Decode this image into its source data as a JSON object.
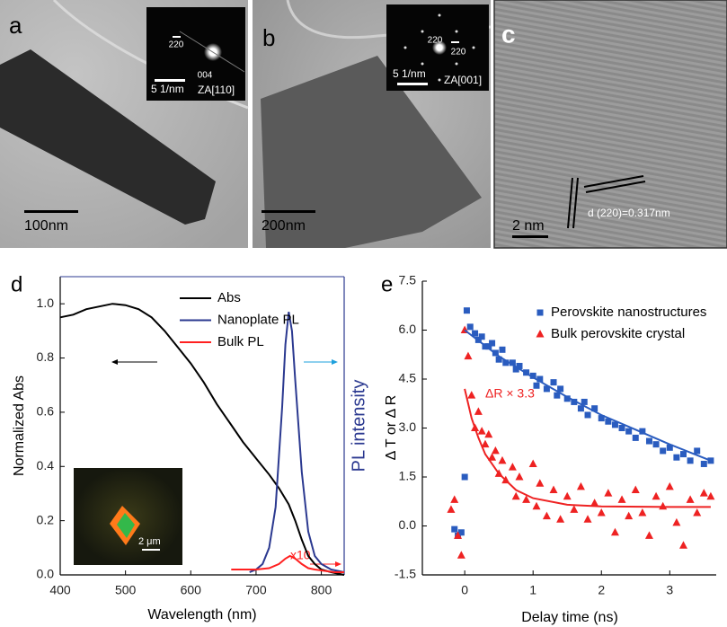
{
  "images": [
    {
      "label": "a",
      "scale_bar": "100nm",
      "inset": {
        "texts": [
          "220",
          "004"
        ],
        "scale_bar": "5 1/nm",
        "zone_axis": "ZA[110]"
      }
    },
    {
      "label": "b",
      "scale_bar": "200nm",
      "inset": {
        "texts": [
          "220",
          "220"
        ],
        "scale_bar": "5 1/nm",
        "zone_axis": "ZA[001]"
      }
    },
    {
      "label": "c",
      "scale_bar": "2 nm",
      "annotation": "d (220)=0.317nm"
    }
  ],
  "chart_data": [
    {
      "type": "line",
      "panel_label": "d",
      "x_label": "Wavelength (nm)",
      "y_label": "Normalized Abs",
      "y2_label": "PL intensity",
      "y2_color": "#2b3990",
      "xlim": [
        400,
        835
      ],
      "ylim": [
        0,
        1.1
      ],
      "y2lim": [
        0,
        1.1
      ],
      "xticks": [
        400,
        500,
        600,
        700,
        800
      ],
      "yticks": [
        {
          "value": 0,
          "label": "0.0"
        },
        0.2,
        0.4,
        0.6,
        0.8,
        {
          "value": 1,
          "label": "1.0"
        }
      ],
      "annotation": "x10",
      "inset_scale_bar": "2 μm",
      "series": [
        {
          "name": "Abs",
          "color": "#000000",
          "x": [
            400,
            420,
            440,
            460,
            480,
            500,
            520,
            540,
            560,
            580,
            600,
            620,
            640,
            660,
            680,
            700,
            720,
            735,
            750,
            760,
            770,
            780,
            790,
            800,
            815,
            835
          ],
          "values": [
            0.95,
            0.96,
            0.98,
            0.99,
            1.0,
            0.995,
            0.98,
            0.95,
            0.9,
            0.84,
            0.78,
            0.71,
            0.63,
            0.56,
            0.49,
            0.43,
            0.37,
            0.32,
            0.26,
            0.2,
            0.13,
            0.07,
            0.04,
            0.02,
            0.01,
            0.0
          ]
        },
        {
          "name": "Nanoplate PL",
          "color": "#2b3990",
          "axis": "y2",
          "x": [
            690,
            700,
            710,
            720,
            730,
            740,
            745,
            750,
            755,
            760,
            770,
            780,
            790,
            800,
            815,
            835
          ],
          "values": [
            0.01,
            0.02,
            0.04,
            0.1,
            0.25,
            0.62,
            0.85,
            0.97,
            0.9,
            0.72,
            0.38,
            0.16,
            0.07,
            0.04,
            0.02,
            0.01
          ]
        },
        {
          "name": "Bulk PL",
          "color": "#ff2020",
          "axis": "y2",
          "x": [
            662,
            680,
            700,
            720,
            735,
            745,
            752,
            760,
            770,
            780,
            790,
            805,
            820,
            835
          ],
          "values": [
            0.02,
            0.02,
            0.02,
            0.025,
            0.04,
            0.06,
            0.07,
            0.06,
            0.04,
            0.025,
            0.02,
            0.015,
            0.01,
            0.01
          ]
        }
      ]
    },
    {
      "type": "scatter",
      "panel_label": "e",
      "x_label": "Delay time (ns)",
      "y_label": "Δ T or Δ R",
      "xlim": [
        -0.62,
        3.68
      ],
      "ylim": [
        -1.5,
        7.5
      ],
      "xticks": [
        0,
        1,
        2,
        3
      ],
      "yticks": [
        -1.5,
        {
          "value": 0,
          "label": "0.0"
        },
        1.5,
        {
          "value": 3,
          "label": "3.0"
        },
        4.5,
        {
          "value": 6,
          "label": "6.0"
        },
        7.5
      ],
      "annotation": "ΔR × 3.3",
      "series": [
        {
          "name": "Perovskite nanostructures",
          "color": "#2a5cbf",
          "marker": "square",
          "x": [
            -0.15,
            -0.1,
            -0.05,
            0.0,
            0.03,
            0.08,
            0.15,
            0.2,
            0.25,
            0.3,
            0.35,
            0.4,
            0.45,
            0.5,
            0.55,
            0.6,
            0.7,
            0.75,
            0.8,
            0.9,
            1.0,
            1.05,
            1.1,
            1.2,
            1.3,
            1.35,
            1.4,
            1.5,
            1.6,
            1.7,
            1.75,
            1.8,
            1.9,
            2.0,
            2.1,
            2.2,
            2.3,
            2.4,
            2.5,
            2.6,
            2.7,
            2.8,
            2.9,
            3.0,
            3.1,
            3.2,
            3.3,
            3.4,
            3.5,
            3.6
          ],
          "values": [
            -0.1,
            -0.3,
            -0.2,
            1.5,
            6.6,
            6.1,
            5.9,
            5.7,
            5.8,
            5.5,
            5.5,
            5.6,
            5.3,
            5.1,
            5.4,
            5.0,
            5.0,
            4.8,
            4.9,
            4.7,
            4.6,
            4.3,
            4.5,
            4.2,
            4.4,
            4.0,
            4.2,
            3.9,
            3.8,
            3.6,
            3.8,
            3.4,
            3.6,
            3.3,
            3.2,
            3.1,
            3.0,
            2.9,
            2.7,
            2.9,
            2.6,
            2.5,
            2.3,
            2.4,
            2.1,
            2.2,
            2.0,
            2.3,
            1.9,
            2.0
          ]
        },
        {
          "name": "Bulk perovskite crystal",
          "color": "#ee2222",
          "marker": "triangle",
          "x": [
            -0.2,
            -0.15,
            -0.1,
            -0.05,
            0.0,
            0.05,
            0.1,
            0.15,
            0.2,
            0.25,
            0.3,
            0.35,
            0.4,
            0.45,
            0.5,
            0.55,
            0.6,
            0.7,
            0.75,
            0.8,
            0.9,
            1.0,
            1.05,
            1.1,
            1.2,
            1.3,
            1.4,
            1.5,
            1.6,
            1.7,
            1.8,
            1.9,
            2.0,
            2.1,
            2.2,
            2.3,
            2.4,
            2.5,
            2.6,
            2.7,
            2.8,
            2.9,
            3.0,
            3.1,
            3.2,
            3.3,
            3.4,
            3.5,
            3.6
          ],
          "values": [
            0.5,
            0.8,
            -0.3,
            -0.9,
            6.0,
            5.2,
            4.0,
            3.0,
            3.5,
            2.9,
            2.5,
            2.8,
            2.1,
            2.3,
            1.6,
            2.0,
            1.4,
            1.8,
            0.9,
            1.5,
            0.8,
            1.9,
            0.6,
            1.3,
            0.3,
            1.1,
            0.2,
            0.9,
            0.5,
            1.2,
            0.2,
            0.7,
            0.4,
            1.0,
            -0.2,
            0.8,
            0.3,
            1.1,
            0.4,
            -0.3,
            0.9,
            0.6,
            1.2,
            0.1,
            -0.6,
            0.8,
            0.4,
            1.0,
            0.9
          ]
        },
        {
          "color": "#2a5cbf",
          "x": [
            0,
            0.5,
            1,
            1.5,
            2,
            2.5,
            3,
            3.6
          ],
          "values": [
            6.0,
            5.2,
            4.55,
            3.95,
            3.4,
            2.95,
            2.5,
            2.0
          ]
        },
        {
          "color": "#ee2222",
          "x": [
            0,
            0.1,
            0.2,
            0.3,
            0.5,
            0.75,
            1,
            1.5,
            2,
            3,
            3.6
          ],
          "values": [
            4.2,
            3.3,
            2.7,
            2.2,
            1.6,
            1.1,
            0.85,
            0.65,
            0.6,
            0.58,
            0.58
          ]
        }
      ]
    }
  ]
}
